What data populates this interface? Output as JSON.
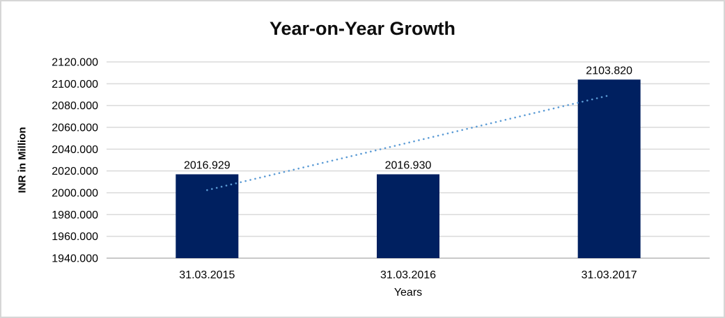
{
  "chart_data": {
    "type": "bar",
    "title": "Year-on-Year Growth",
    "categories": [
      "31.03.2015",
      "31.03.2016",
      "31.03.2017"
    ],
    "values": [
      2016.929,
      2016.93,
      2103.82
    ],
    "value_labels": [
      "2016.929",
      "2016.930",
      "2103.820"
    ],
    "xlabel": "Years",
    "ylabel": "INR in Million",
    "ylim": [
      1940,
      2120
    ],
    "ytick_step": 20,
    "ytick_labels": [
      "2120.000",
      "2100.000",
      "2080.000",
      "2060.000",
      "2040.000",
      "2020.000",
      "2000.000",
      "1980.000",
      "1960.000",
      "1940.000"
    ],
    "grid": true,
    "legend_position": "none",
    "bar_color": "#002060",
    "gridline_color": "#dadada",
    "axis_line_color": "#c9c9c9",
    "trendline": {
      "type": "linear",
      "style": "dotted",
      "color": "#5b9bd5",
      "start_value": 2002.41,
      "end_value": 2089.31
    }
  }
}
